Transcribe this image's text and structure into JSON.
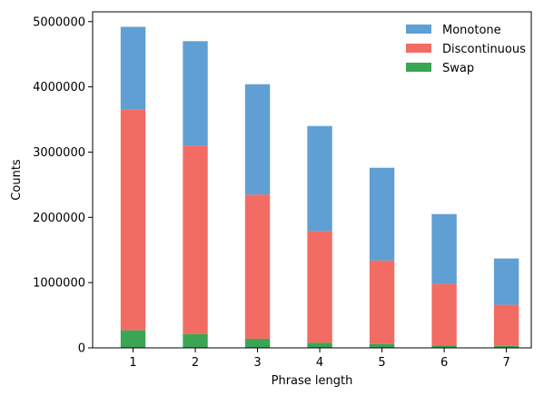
{
  "chart_data": {
    "type": "bar",
    "stacked": true,
    "title": "",
    "xlabel": "Phrase length",
    "ylabel": "Counts",
    "categories": [
      "1",
      "2",
      "3",
      "4",
      "5",
      "6",
      "7"
    ],
    "x": [
      1,
      2,
      3,
      4,
      5,
      6,
      7
    ],
    "xlim": [
      0.35,
      7.4
    ],
    "ylim": [
      0,
      5150000
    ],
    "yticks": [
      0,
      1000000,
      2000000,
      3000000,
      4000000,
      5000000
    ],
    "ytick_labels": [
      "0",
      "1000000",
      "2000000",
      "3000000",
      "4000000",
      "5000000"
    ],
    "grid": false,
    "legend": "top-right",
    "series": [
      {
        "name": "Swap",
        "color": "#3aa655",
        "values": [
          270000,
          210000,
          140000,
          80000,
          60000,
          40000,
          30000
        ]
      },
      {
        "name": "Discontinuous",
        "color": "#f26c64",
        "values": [
          3380000,
          2890000,
          2210000,
          1710000,
          1280000,
          940000,
          630000
        ]
      },
      {
        "name": "Monotone",
        "color": "#5f9fd3",
        "values": [
          1270000,
          1600000,
          1690000,
          1610000,
          1420000,
          1070000,
          710000
        ]
      }
    ],
    "legend_order": [
      "Monotone",
      "Discontinuous",
      "Swap"
    ]
  }
}
